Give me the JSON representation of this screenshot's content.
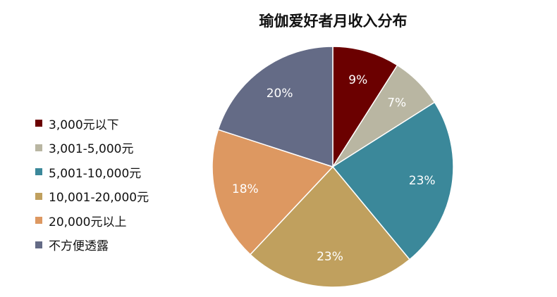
{
  "chart_data": {
    "type": "pie",
    "title": "瑜伽爱好者月收入分布",
    "categories": [
      "3,000元以下",
      "3,001-5,000元",
      "5,001-10,000元",
      "10,001-20,000元",
      "20,000元以上",
      "不方便透露"
    ],
    "values": [
      9,
      7,
      23,
      23,
      18,
      20
    ],
    "data_labels": [
      "9%",
      "7%",
      "23%",
      "23%",
      "18%",
      "20%"
    ],
    "colors": [
      "#6b0000",
      "#b9b6a2",
      "#3b889a",
      "#c0a05e",
      "#dd9861",
      "#646b86"
    ],
    "legend_position": "left",
    "start_angle": "12 o'clock",
    "direction": "clockwise"
  }
}
